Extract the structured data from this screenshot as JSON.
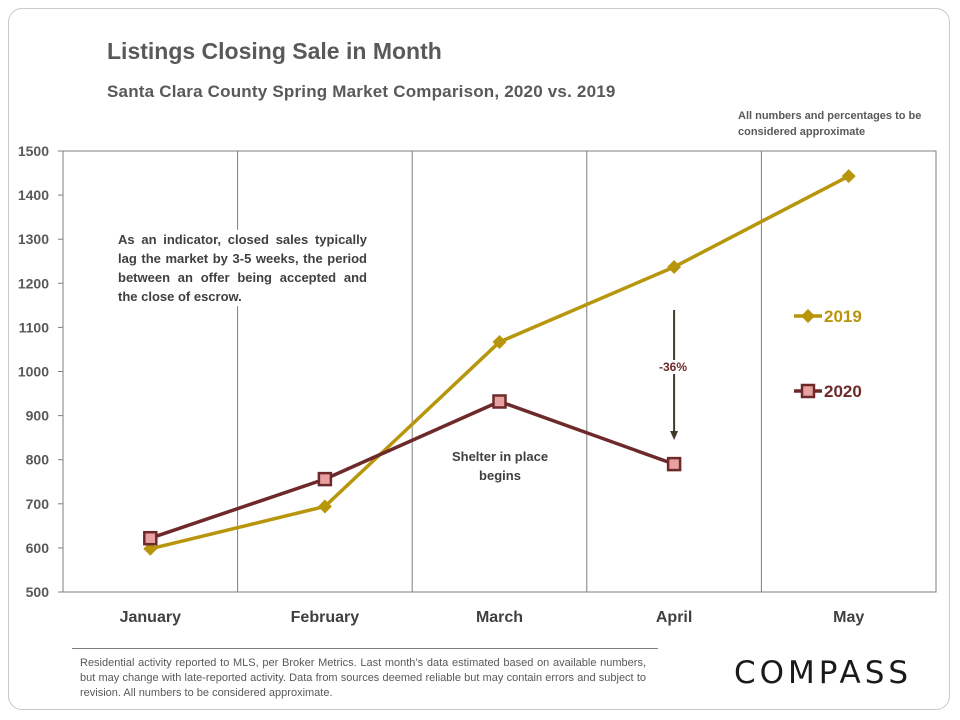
{
  "header": {
    "title": "Listings Closing Sale in Month",
    "subtitle": "Santa Clara County Spring Market Comparison,  2020 vs. 2019",
    "approx_note": "All numbers and percentages to be considered approximate"
  },
  "annotations": {
    "indicator_note": "As an indicator, closed sales typically lag the market by 3-5 weeks, the period between an offer being accepted and the close of escrow.",
    "shelter_note": "Shelter in place begins",
    "change_label": "-36%"
  },
  "footer": {
    "footnote": "Residential activity reported to MLS, per Broker Metrics. Last month’s data estimated based on available numbers, but may change with late-reported activity. Data from sources deemed reliable but may contain errors and subject to revision. All numbers to be considered approximate.",
    "logo_text": "COMPASS"
  },
  "chart_data": {
    "type": "line",
    "categories": [
      "January",
      "February",
      "March",
      "April",
      "May"
    ],
    "ylim": [
      500,
      1500
    ],
    "yticks": [
      500,
      600,
      700,
      800,
      900,
      1000,
      1100,
      1200,
      1300,
      1400,
      1500
    ],
    "grid": "vertical",
    "legend_position": "right",
    "series": [
      {
        "name": "2019",
        "values": [
          598,
          694,
          1067,
          1237,
          1443
        ],
        "color": "#b8960c",
        "marker": "diamond"
      },
      {
        "name": "2020",
        "values": [
          622,
          756,
          932,
          790,
          null
        ],
        "color": "#6e2a2a",
        "marker": "square",
        "marker_fill": "#e8a0a0"
      }
    ]
  }
}
